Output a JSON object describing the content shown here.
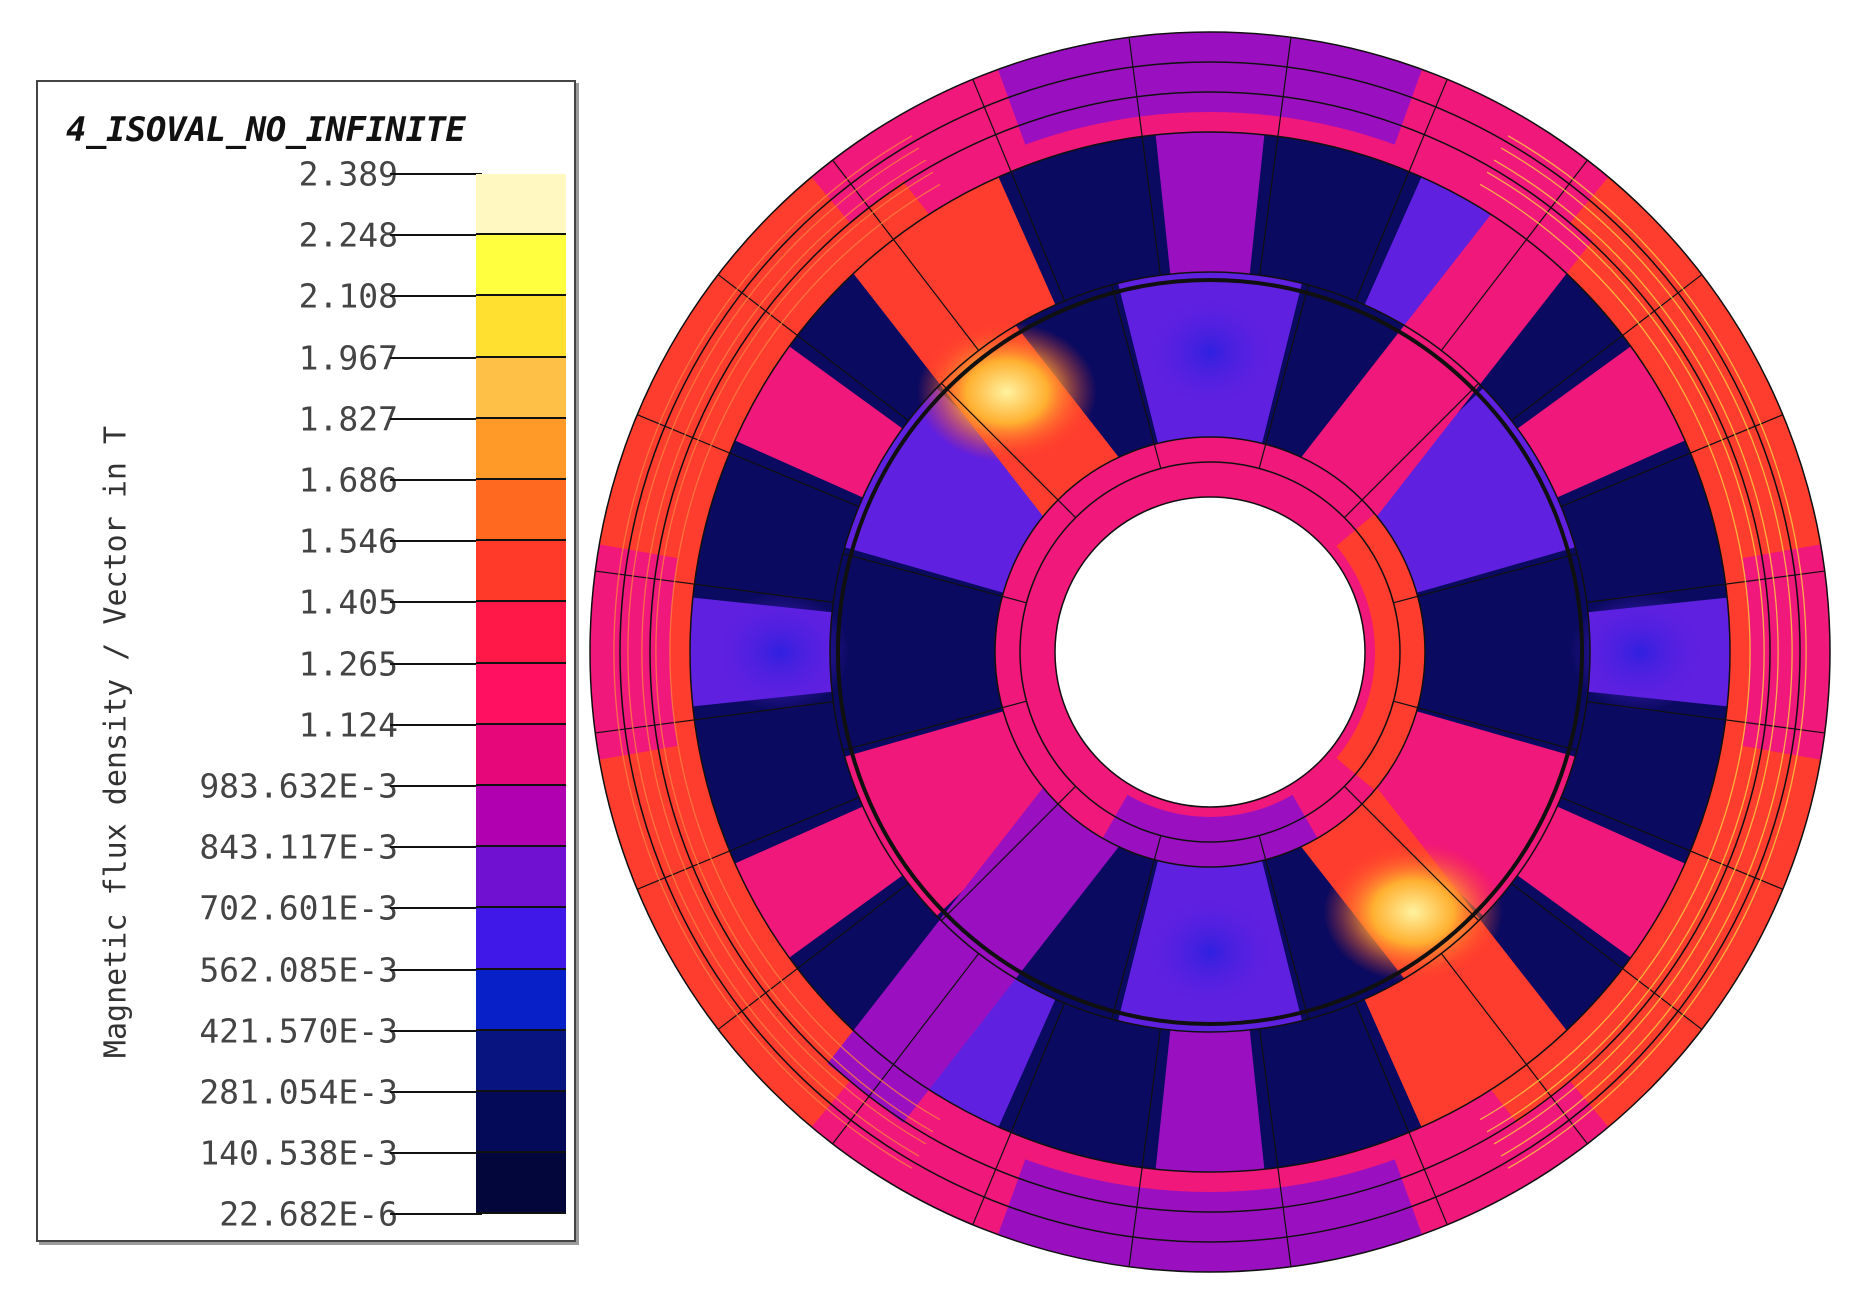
{
  "legend": {
    "title": "4_ISOVAL_NO_INFINITE",
    "axis_label": "Magnetic flux density / Vector in T",
    "ticks": [
      "2.389",
      "2.248",
      "2.108",
      "1.967",
      "1.827",
      "1.686",
      "1.546",
      "1.405",
      "1.265",
      "1.124",
      "983.632E-3",
      "843.117E-3",
      "702.601E-3",
      "562.085E-3",
      "421.570E-3",
      "281.054E-3",
      "140.538E-3",
      "22.682E-6"
    ],
    "colors": [
      "#fff8c0",
      "#ffff40",
      "#ffe030",
      "#ffc048",
      "#ff9a28",
      "#ff6a20",
      "#ff3a28",
      "#ff1848",
      "#ff1060",
      "#e6087a",
      "#b000b0",
      "#7010d0",
      "#4018e8",
      "#0820c8",
      "#081480",
      "#040a58",
      "#02063a"
    ]
  },
  "motor": {
    "description_icon": "motor-cross-section-icon",
    "colors": {
      "outer_high": "#ff3d2e",
      "outer_mid": "#f0187a",
      "purple": "#9a10c0",
      "violet": "#6020e0",
      "slot": "#0a0a60",
      "gap_blue": "#2020d8",
      "hot": "#ffb040",
      "line_dark": "#101010",
      "flux_line_warm": "#ffd040"
    }
  }
}
